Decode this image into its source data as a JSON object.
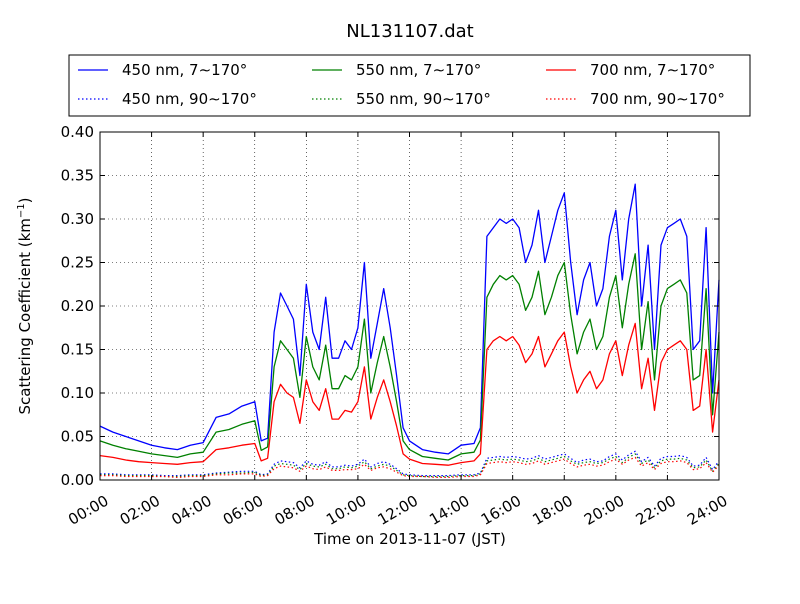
{
  "chart_data": {
    "type": "line",
    "title": "NL131107.dat",
    "xlabel": "Time on 2013-11-07 (JST)",
    "ylabel_main": "Scattering Coefficient (km",
    "ylabel_sup": "−1",
    "ylabel_tail": ")",
    "xlim": [
      0,
      24
    ],
    "ylim": [
      0,
      0.4
    ],
    "grid": true,
    "legend_position": "top",
    "x_ticks": [
      0,
      2,
      4,
      6,
      8,
      10,
      12,
      14,
      16,
      18,
      20,
      22,
      24
    ],
    "x_tick_labels": [
      "00:00",
      "02:00",
      "04:00",
      "06:00",
      "08:00",
      "10:00",
      "12:00",
      "14:00",
      "16:00",
      "18:00",
      "20:00",
      "22:00",
      "24:00"
    ],
    "y_ticks": [
      0,
      0.05,
      0.1,
      0.15,
      0.2,
      0.25,
      0.3,
      0.35,
      0.4
    ],
    "y_tick_labels": [
      "0.00",
      "0.05",
      "0.10",
      "0.15",
      "0.20",
      "0.25",
      "0.30",
      "0.35",
      "0.40"
    ],
    "x": [
      0,
      0.5,
      1,
      1.5,
      2,
      2.5,
      3,
      3.5,
      4,
      4.5,
      5,
      5.5,
      6,
      6.25,
      6.5,
      6.75,
      7,
      7.25,
      7.5,
      7.75,
      8,
      8.25,
      8.5,
      8.75,
      9,
      9.25,
      9.5,
      9.75,
      10,
      10.25,
      10.5,
      10.75,
      11,
      11.25,
      11.5,
      11.75,
      12,
      12.5,
      13,
      13.5,
      14,
      14.5,
      14.75,
      15,
      15.25,
      15.5,
      15.75,
      16,
      16.25,
      16.5,
      16.75,
      17,
      17.25,
      17.5,
      17.75,
      18,
      18.25,
      18.5,
      18.75,
      19,
      19.25,
      19.5,
      19.75,
      20,
      20.25,
      20.5,
      20.75,
      21,
      21.25,
      21.5,
      21.75,
      22,
      22.25,
      22.5,
      22.75,
      23,
      23.25,
      23.5,
      23.75,
      24
    ],
    "series": [
      {
        "name": "450 nm, 7∼170°",
        "color": "#0000ff",
        "style": "solid",
        "values": [
          0.062,
          0.055,
          0.05,
          0.045,
          0.04,
          0.037,
          0.035,
          0.04,
          0.043,
          0.072,
          0.076,
          0.085,
          0.09,
          0.045,
          0.048,
          0.17,
          0.215,
          0.2,
          0.185,
          0.12,
          0.225,
          0.17,
          0.15,
          0.21,
          0.14,
          0.14,
          0.16,
          0.15,
          0.175,
          0.25,
          0.14,
          0.18,
          0.22,
          0.175,
          0.12,
          0.06,
          0.045,
          0.035,
          0.032,
          0.03,
          0.04,
          0.042,
          0.06,
          0.28,
          0.29,
          0.3,
          0.295,
          0.3,
          0.29,
          0.25,
          0.27,
          0.31,
          0.25,
          0.28,
          0.31,
          0.33,
          0.25,
          0.19,
          0.23,
          0.25,
          0.2,
          0.22,
          0.28,
          0.31,
          0.23,
          0.3,
          0.34,
          0.2,
          0.27,
          0.15,
          0.27,
          0.29,
          0.295,
          0.3,
          0.28,
          0.15,
          0.16,
          0.29,
          0.1,
          0.23
        ]
      },
      {
        "name": "550 nm, 7∼170°",
        "color": "#008000",
        "style": "solid",
        "values": [
          0.045,
          0.04,
          0.036,
          0.033,
          0.03,
          0.028,
          0.026,
          0.03,
          0.032,
          0.055,
          0.058,
          0.064,
          0.068,
          0.034,
          0.038,
          0.13,
          0.16,
          0.15,
          0.14,
          0.095,
          0.165,
          0.13,
          0.115,
          0.155,
          0.105,
          0.105,
          0.12,
          0.115,
          0.13,
          0.185,
          0.1,
          0.135,
          0.165,
          0.13,
          0.09,
          0.045,
          0.035,
          0.027,
          0.025,
          0.023,
          0.03,
          0.032,
          0.046,
          0.21,
          0.225,
          0.235,
          0.23,
          0.235,
          0.225,
          0.195,
          0.21,
          0.24,
          0.19,
          0.21,
          0.235,
          0.25,
          0.19,
          0.145,
          0.17,
          0.185,
          0.15,
          0.165,
          0.21,
          0.235,
          0.175,
          0.225,
          0.26,
          0.15,
          0.205,
          0.115,
          0.2,
          0.22,
          0.225,
          0.23,
          0.215,
          0.115,
          0.12,
          0.22,
          0.075,
          0.17
        ]
      },
      {
        "name": "700 nm, 7∼170°",
        "color": "#ff0000",
        "style": "solid",
        "values": [
          0.028,
          0.026,
          0.023,
          0.021,
          0.02,
          0.019,
          0.018,
          0.02,
          0.021,
          0.035,
          0.037,
          0.04,
          0.042,
          0.022,
          0.025,
          0.09,
          0.11,
          0.1,
          0.095,
          0.065,
          0.115,
          0.09,
          0.08,
          0.105,
          0.07,
          0.07,
          0.08,
          0.078,
          0.09,
          0.13,
          0.07,
          0.095,
          0.115,
          0.09,
          0.062,
          0.03,
          0.024,
          0.019,
          0.018,
          0.017,
          0.02,
          0.022,
          0.03,
          0.15,
          0.16,
          0.165,
          0.16,
          0.165,
          0.155,
          0.135,
          0.145,
          0.165,
          0.13,
          0.145,
          0.16,
          0.17,
          0.13,
          0.1,
          0.115,
          0.125,
          0.105,
          0.115,
          0.145,
          0.16,
          0.12,
          0.155,
          0.18,
          0.105,
          0.14,
          0.08,
          0.135,
          0.15,
          0.155,
          0.16,
          0.15,
          0.08,
          0.085,
          0.15,
          0.055,
          0.115
        ]
      },
      {
        "name": "450 nm, 90∼170°",
        "color": "#0000ff",
        "style": "dotted",
        "values": [
          0.007,
          0.007,
          0.006,
          0.006,
          0.006,
          0.005,
          0.005,
          0.006,
          0.006,
          0.008,
          0.009,
          0.01,
          0.01,
          0.006,
          0.007,
          0.018,
          0.022,
          0.021,
          0.02,
          0.014,
          0.022,
          0.018,
          0.017,
          0.021,
          0.015,
          0.015,
          0.017,
          0.016,
          0.018,
          0.024,
          0.015,
          0.019,
          0.021,
          0.018,
          0.013,
          0.007,
          0.006,
          0.005,
          0.005,
          0.005,
          0.006,
          0.006,
          0.008,
          0.025,
          0.026,
          0.027,
          0.026,
          0.027,
          0.026,
          0.024,
          0.025,
          0.028,
          0.024,
          0.026,
          0.028,
          0.03,
          0.025,
          0.02,
          0.023,
          0.024,
          0.021,
          0.022,
          0.027,
          0.03,
          0.023,
          0.029,
          0.033,
          0.021,
          0.026,
          0.016,
          0.025,
          0.027,
          0.027,
          0.028,
          0.026,
          0.016,
          0.017,
          0.026,
          0.012,
          0.022
        ]
      },
      {
        "name": "550 nm, 90∼170°",
        "color": "#008000",
        "style": "dotted",
        "values": [
          0.006,
          0.006,
          0.005,
          0.005,
          0.005,
          0.004,
          0.004,
          0.005,
          0.005,
          0.007,
          0.008,
          0.008,
          0.009,
          0.005,
          0.006,
          0.016,
          0.019,
          0.018,
          0.017,
          0.012,
          0.019,
          0.016,
          0.015,
          0.018,
          0.013,
          0.013,
          0.015,
          0.014,
          0.016,
          0.021,
          0.013,
          0.016,
          0.018,
          0.016,
          0.011,
          0.006,
          0.005,
          0.004,
          0.004,
          0.004,
          0.005,
          0.005,
          0.007,
          0.022,
          0.023,
          0.024,
          0.023,
          0.024,
          0.023,
          0.021,
          0.022,
          0.025,
          0.021,
          0.023,
          0.025,
          0.027,
          0.022,
          0.018,
          0.02,
          0.021,
          0.019,
          0.02,
          0.024,
          0.027,
          0.02,
          0.026,
          0.03,
          0.019,
          0.023,
          0.014,
          0.022,
          0.024,
          0.024,
          0.025,
          0.023,
          0.014,
          0.015,
          0.023,
          0.01,
          0.019
        ]
      },
      {
        "name": "700 nm, 90∼170°",
        "color": "#ff0000",
        "style": "dotted",
        "values": [
          0.005,
          0.005,
          0.004,
          0.004,
          0.004,
          0.004,
          0.003,
          0.004,
          0.004,
          0.006,
          0.006,
          0.007,
          0.007,
          0.004,
          0.005,
          0.013,
          0.016,
          0.015,
          0.014,
          0.01,
          0.016,
          0.013,
          0.012,
          0.015,
          0.011,
          0.011,
          0.012,
          0.012,
          0.013,
          0.018,
          0.011,
          0.014,
          0.015,
          0.013,
          0.009,
          0.005,
          0.004,
          0.004,
          0.003,
          0.003,
          0.004,
          0.004,
          0.006,
          0.019,
          0.02,
          0.021,
          0.02,
          0.021,
          0.02,
          0.018,
          0.019,
          0.022,
          0.018,
          0.02,
          0.022,
          0.024,
          0.019,
          0.015,
          0.017,
          0.018,
          0.016,
          0.017,
          0.021,
          0.024,
          0.018,
          0.023,
          0.026,
          0.016,
          0.02,
          0.012,
          0.019,
          0.021,
          0.021,
          0.022,
          0.02,
          0.012,
          0.013,
          0.02,
          0.009,
          0.017
        ]
      }
    ]
  }
}
